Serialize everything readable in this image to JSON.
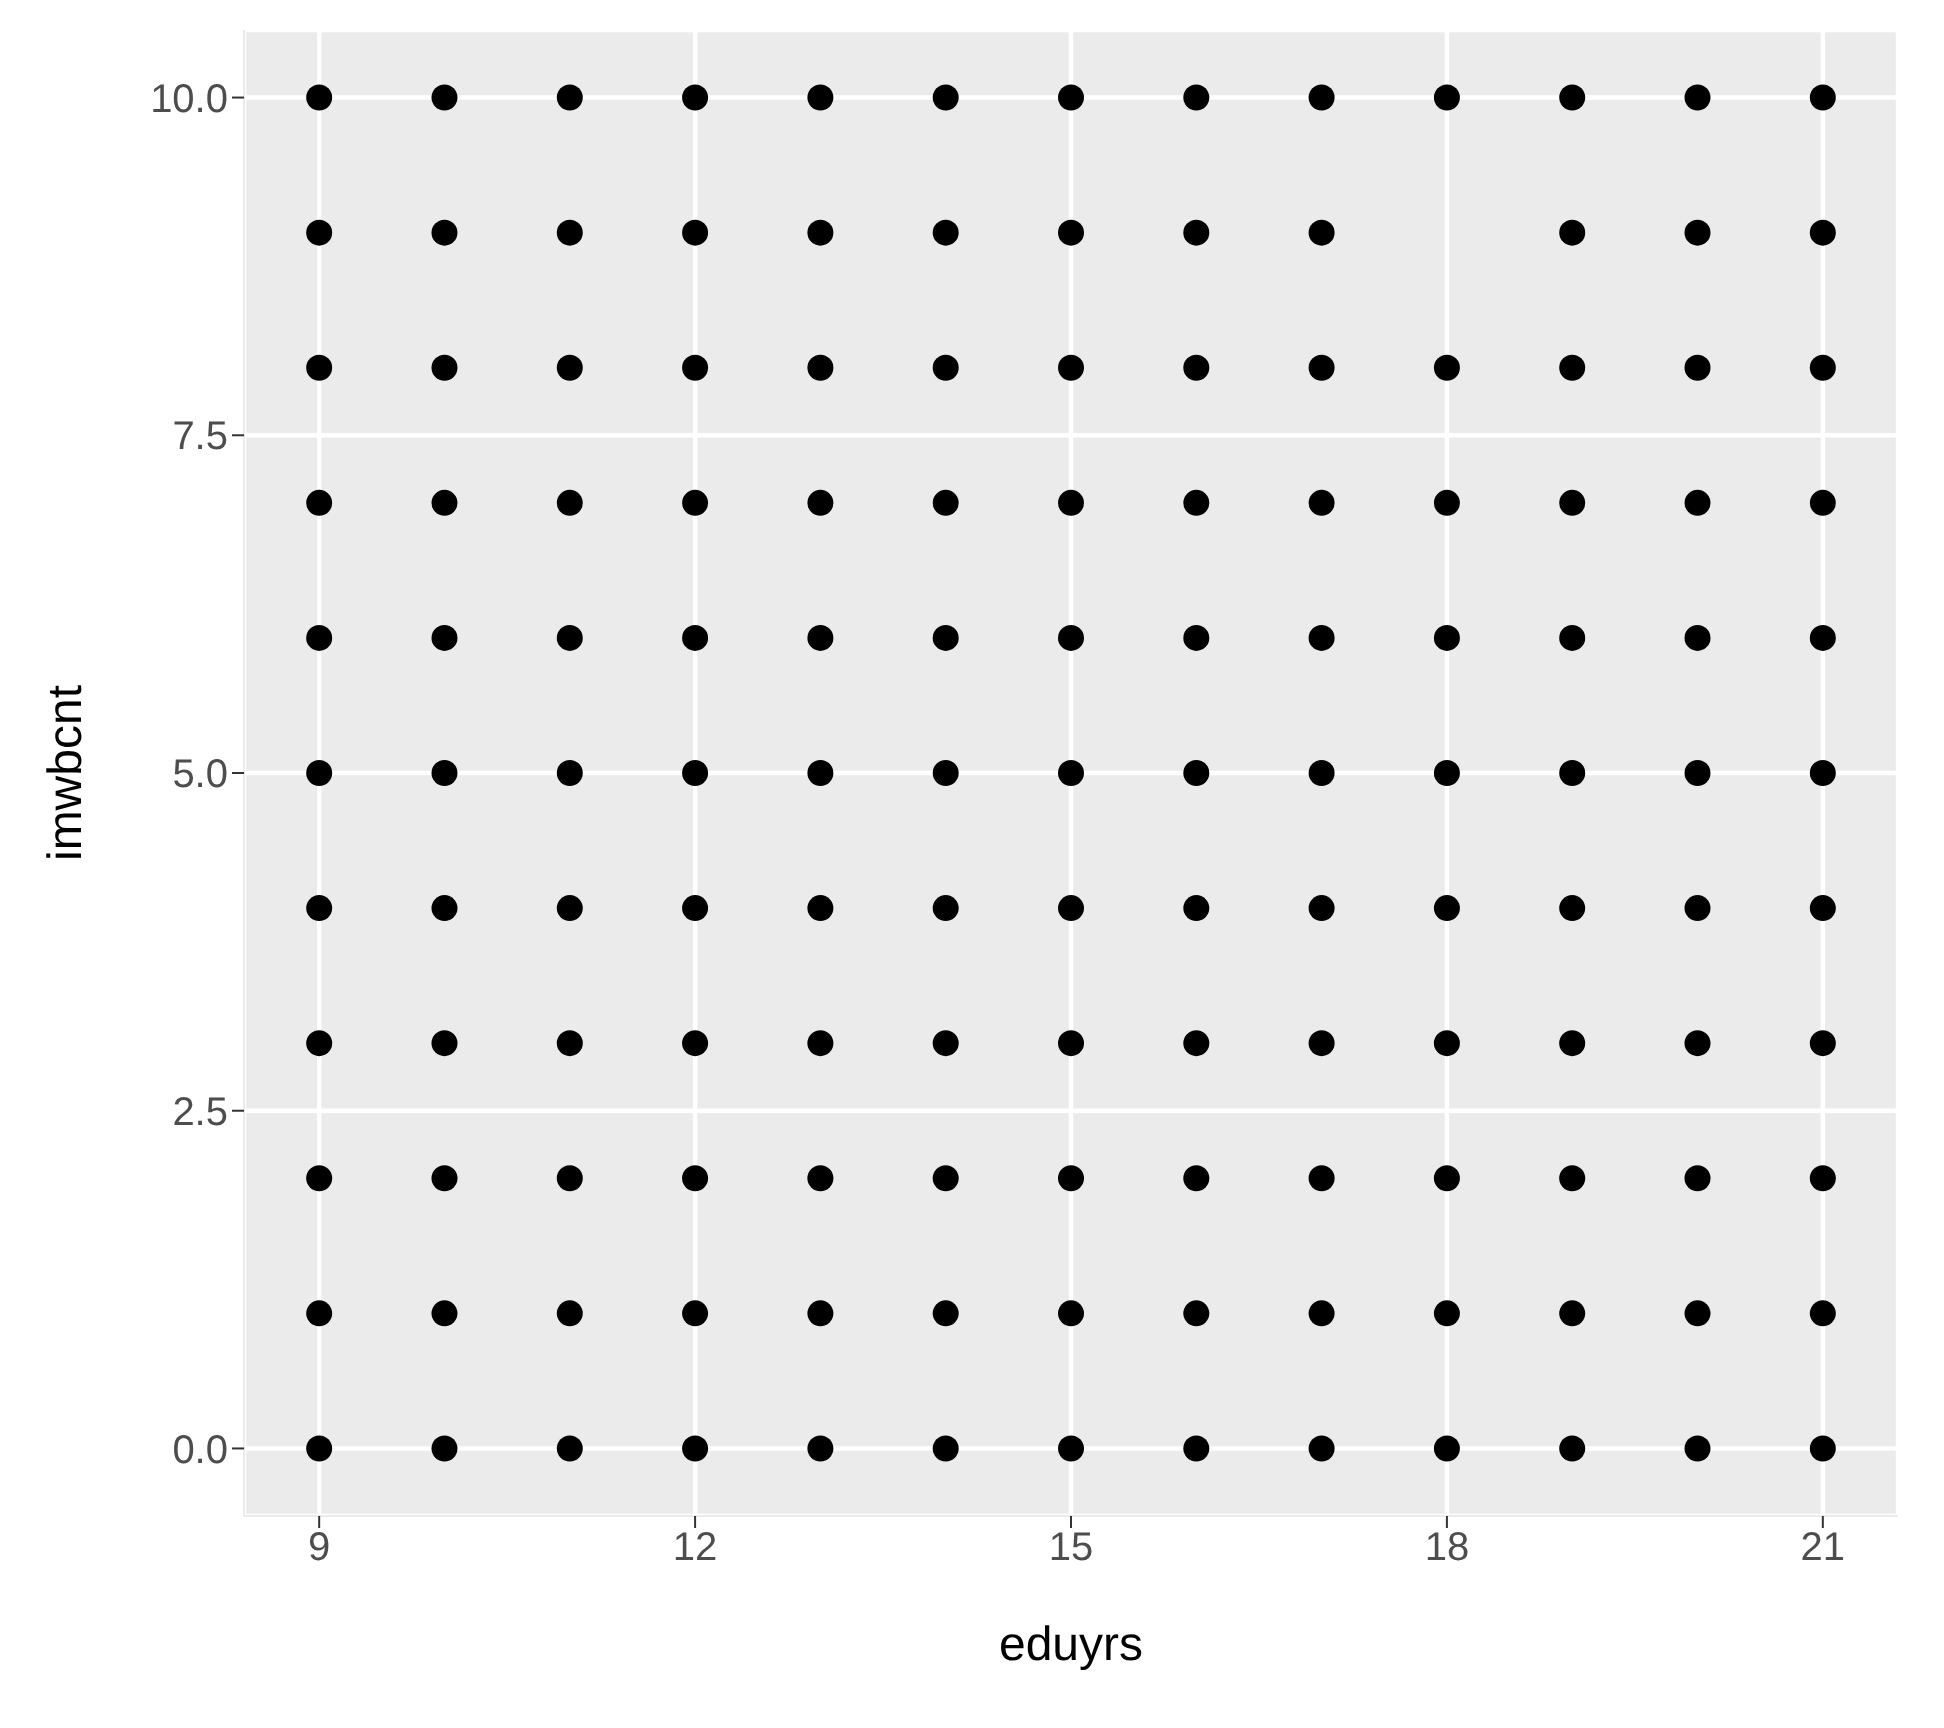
{
  "chart_data": {
    "type": "scatter",
    "xlabel": "eduyrs",
    "ylabel": "imwbcnt",
    "xlim": [
      8.4,
      21.6
    ],
    "ylim": [
      -0.5,
      10.5
    ],
    "xticks": [
      9,
      12,
      15,
      18,
      21
    ],
    "yticks": [
      {
        "value": 0,
        "label": "0.0"
      },
      2.5,
      {
        "value": 5,
        "label": "5.0"
      },
      7.5,
      {
        "value": 10,
        "label": "10.0"
      }
    ],
    "grid": true,
    "marker": "circle",
    "legend": false,
    "series": [
      {
        "color": "#000000",
        "x": [
          9,
          9,
          9,
          9,
          9,
          9,
          9,
          9,
          9,
          9,
          9,
          10,
          10,
          10,
          10,
          10,
          10,
          10,
          10,
          10,
          10,
          10,
          11,
          11,
          11,
          11,
          11,
          11,
          11,
          11,
          11,
          11,
          11,
          12,
          12,
          12,
          12,
          12,
          12,
          12,
          12,
          12,
          12,
          12,
          13,
          13,
          13,
          13,
          13,
          13,
          13,
          13,
          13,
          13,
          13,
          14,
          14,
          14,
          14,
          14,
          14,
          14,
          14,
          14,
          14,
          14,
          15,
          15,
          15,
          15,
          15,
          15,
          15,
          15,
          15,
          15,
          15,
          16,
          16,
          16,
          16,
          16,
          16,
          16,
          16,
          16,
          16,
          16,
          17,
          17,
          17,
          17,
          17,
          17,
          17,
          17,
          17,
          17,
          17,
          18,
          18,
          18,
          18,
          18,
          18,
          18,
          18,
          18,
          18,
          19,
          19,
          19,
          19,
          19,
          19,
          19,
          19,
          19,
          19,
          19,
          20,
          20,
          20,
          20,
          20,
          20,
          20,
          20,
          20,
          20,
          20,
          21,
          21,
          21,
          21,
          21,
          21,
          21,
          21,
          21,
          21,
          21
        ],
        "values": [
          0,
          1,
          2,
          3,
          4,
          5,
          6,
          7,
          8,
          9,
          10,
          0,
          1,
          2,
          3,
          4,
          5,
          6,
          7,
          8,
          9,
          10,
          0,
          1,
          2,
          3,
          4,
          5,
          6,
          7,
          8,
          9,
          10,
          0,
          1,
          2,
          3,
          4,
          5,
          6,
          7,
          8,
          9,
          10,
          0,
          1,
          2,
          3,
          4,
          5,
          6,
          7,
          8,
          9,
          10,
          0,
          1,
          2,
          3,
          4,
          5,
          6,
          7,
          8,
          9,
          10,
          0,
          1,
          2,
          3,
          4,
          5,
          6,
          7,
          8,
          9,
          10,
          0,
          1,
          2,
          3,
          4,
          5,
          6,
          7,
          8,
          9,
          10,
          0,
          1,
          2,
          3,
          4,
          5,
          6,
          7,
          8,
          9,
          10,
          0,
          1,
          2,
          3,
          4,
          5,
          6,
          7,
          8,
          10,
          0,
          1,
          2,
          3,
          4,
          5,
          6,
          7,
          8,
          9,
          10,
          0,
          1,
          2,
          3,
          4,
          5,
          6,
          7,
          8,
          9,
          10,
          0,
          1,
          2,
          3,
          4,
          5,
          6,
          7,
          8,
          9,
          10
        ]
      }
    ]
  }
}
